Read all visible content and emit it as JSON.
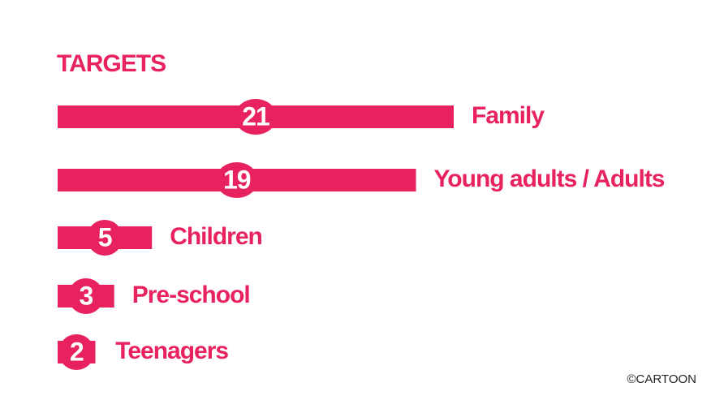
{
  "chart_data": {
    "type": "bar",
    "orientation": "horizontal",
    "title": "TARGETS",
    "categories": [
      "Family",
      "Young adults / Adults",
      "Children",
      "Pre-school",
      "Teenagers"
    ],
    "values": [
      21,
      19,
      5,
      3,
      2
    ],
    "color": "#e8225e",
    "credit": "©CARTOON"
  }
}
